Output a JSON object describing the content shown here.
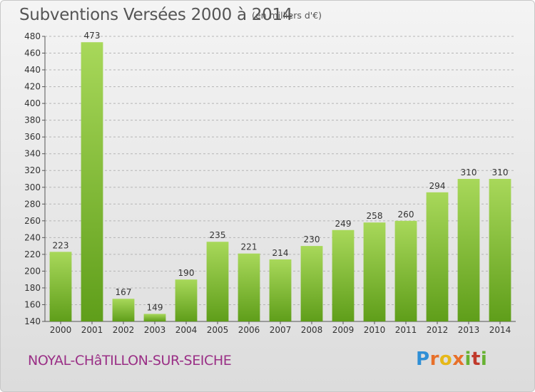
{
  "title": "Subventions Versées 2000 à 2014",
  "subtitle": "(en milliers d'€)",
  "commune": "NOYAL-CHâTILLON-SUR-SEICHE",
  "logo_text": "Proxiti",
  "colors": {
    "bar_light": "#a8d85a",
    "bar_dark": "#5f9e1a",
    "grid": "#b5b5b5",
    "commune": "#9a2f86"
  },
  "chart_data": {
    "type": "bar",
    "categories": [
      "2000",
      "2001",
      "2002",
      "2003",
      "2004",
      "2005",
      "2006",
      "2007",
      "2008",
      "2009",
      "2010",
      "2011",
      "2012",
      "2013",
      "2014"
    ],
    "values": [
      223,
      473,
      167,
      149,
      190,
      235,
      221,
      214,
      230,
      249,
      258,
      260,
      294,
      310,
      310
    ],
    "title": "Subventions Versées 2000 à 2014",
    "ylabel": "",
    "xlabel": "",
    "ylim": [
      140,
      480
    ],
    "yticks": [
      140,
      160,
      180,
      200,
      220,
      240,
      260,
      280,
      300,
      320,
      340,
      360,
      380,
      400,
      420,
      440,
      460,
      480
    ],
    "grid": true,
    "legend": "none"
  }
}
